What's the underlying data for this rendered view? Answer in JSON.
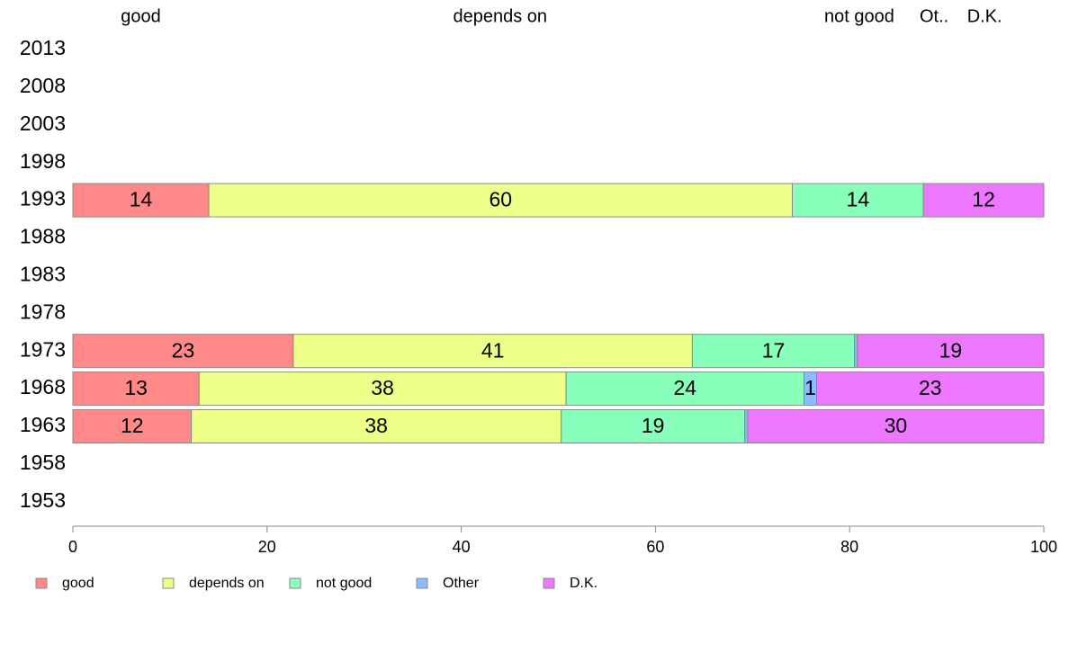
{
  "chart_data": {
    "type": "bar",
    "orientation": "horizontal",
    "stacked": true,
    "title": "",
    "xlabel": "",
    "ylabel": "",
    "xlim": [
      0,
      100
    ],
    "x_ticks": [
      "0",
      "20",
      "40",
      "60",
      "80",
      "100"
    ],
    "grid": false,
    "legend_position": "bottom",
    "top_labels": [
      {
        "text": "good",
        "x": 7
      },
      {
        "text": "depends on",
        "x": 44
      },
      {
        "text": "not good",
        "x": 81
      },
      {
        "text": "Ot..",
        "x": 88.7
      },
      {
        "text": "D.K.",
        "x": 93.9
      }
    ],
    "categories": [
      "2013",
      "2008",
      "2003",
      "1998",
      "1993",
      "1988",
      "1983",
      "1978",
      "1973",
      "1968",
      "1963",
      "1958",
      "1953"
    ],
    "series": [
      {
        "name": "good",
        "color": "#ff8888",
        "values": [
          null,
          null,
          null,
          null,
          14,
          null,
          null,
          null,
          22.7,
          13,
          12.2,
          null,
          null
        ],
        "labels": [
          "",
          "",
          "",
          "",
          "14",
          "",
          "",
          "",
          "23",
          "13",
          "12",
          "",
          ""
        ]
      },
      {
        "name": "depends on",
        "color": "#eeff88",
        "values": [
          null,
          null,
          null,
          null,
          60.1,
          null,
          null,
          null,
          41.1,
          37.8,
          38.1,
          null,
          null
        ],
        "labels": [
          "",
          "",
          "",
          "",
          "60",
          "",
          "",
          "",
          "41",
          "38",
          "38",
          "",
          ""
        ]
      },
      {
        "name": "not good",
        "color": "#88ffbb",
        "values": [
          null,
          null,
          null,
          null,
          13.5,
          null,
          null,
          null,
          16.7,
          24.5,
          18.9,
          null,
          null
        ],
        "labels": [
          "",
          "",
          "",
          "",
          "14",
          "",
          "",
          "",
          "17",
          "24",
          "19",
          "",
          ""
        ]
      },
      {
        "name": "Other",
        "color": "#88bbff",
        "values": [
          null,
          null,
          null,
          null,
          0,
          null,
          null,
          null,
          0.3,
          1.3,
          0.3,
          null,
          null
        ],
        "labels": [
          "",
          "",
          "",
          "",
          "",
          "",
          "",
          "",
          "",
          "1",
          "",
          "",
          ""
        ]
      },
      {
        "name": "D.K.",
        "color": "#ee77ff",
        "values": [
          null,
          null,
          null,
          null,
          12.4,
          null,
          null,
          null,
          19.2,
          23.4,
          30.5,
          null,
          null
        ],
        "labels": [
          "",
          "",
          "",
          "",
          "12",
          "",
          "",
          "",
          "19",
          "23",
          "30",
          "",
          ""
        ]
      }
    ]
  }
}
